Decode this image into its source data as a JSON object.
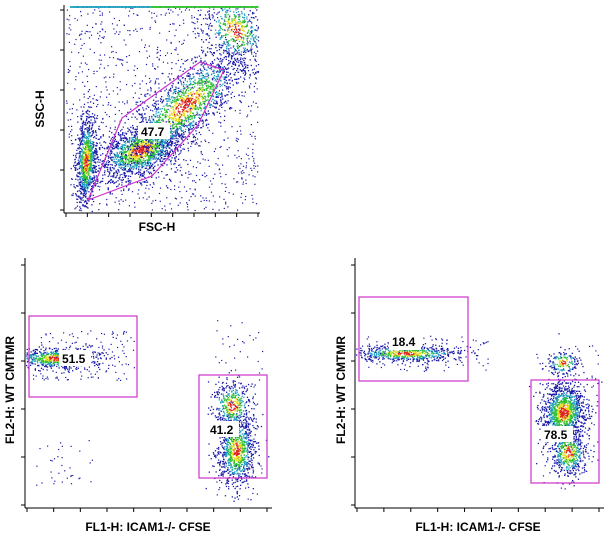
{
  "chart_data": [
    {
      "type": "scatter",
      "plot": "density-dot-plot",
      "xlabel": "FSC-H",
      "ylabel": "SSC-H",
      "gates": [
        {
          "shape": "polygon",
          "label": "47.7"
        }
      ]
    },
    {
      "type": "scatter",
      "plot": "density-dot-plot",
      "xlabel": "FL1-H: ICAM1-/- CFSE",
      "ylabel": "FL2-H: WT CMTMR",
      "gates": [
        {
          "shape": "rectangle",
          "label": "51.5"
        },
        {
          "shape": "rectangle",
          "label": "41.2"
        }
      ]
    },
    {
      "type": "scatter",
      "plot": "density-dot-plot",
      "xlabel": "FL1-H: ICAM1-/- CFSE",
      "ylabel": "FL2-H: WT CMTMR",
      "gates": [
        {
          "shape": "rectangle",
          "label": "18.4"
        },
        {
          "shape": "rectangle",
          "label": "78.5"
        }
      ]
    }
  ],
  "colors": {
    "gate": "#cc33cc",
    "density_low": "#1a1aa8",
    "density_mid": "#20a0c0",
    "density_high1": "#30c030",
    "density_high2": "#e8e020",
    "density_peak": "#e02020"
  }
}
